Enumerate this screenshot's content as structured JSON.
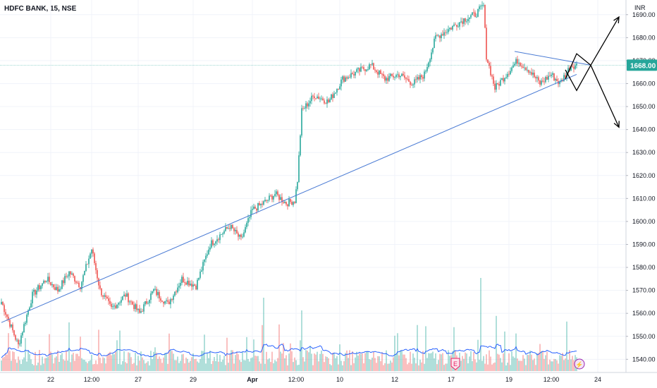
{
  "chart_data": {
    "type": "candlestick",
    "title": "HDFC BANK, 15, NSE",
    "currency": "INR",
    "last_price": "1668.00",
    "last_price_value": 1668,
    "y_range": [
      1535,
      1700
    ],
    "y_ticks": [
      "1690.00",
      "1680.00",
      "1670.00",
      "1660.00",
      "1650.00",
      "1640.00",
      "1630.00",
      "1620.00",
      "1610.00",
      "1600.00",
      "1590.00",
      "1580.00",
      "1570.00",
      "1560.00",
      "1550.00",
      "1540.00"
    ],
    "y_tick_values": [
      1690,
      1680,
      1670,
      1660,
      1650,
      1640,
      1630,
      1620,
      1610,
      1600,
      1590,
      1580,
      1570,
      1560,
      1550,
      1540
    ],
    "x_ticks": [
      "22",
      "12:00",
      "27",
      "29",
      "Apr",
      "12:00",
      "10",
      "12",
      "17",
      "19",
      "12:00",
      "24"
    ],
    "colors": {
      "up": "#26a69a",
      "down": "#ef5350",
      "trendline": "#4a7bd4",
      "price_line": "#26a69a",
      "volume_ma": "#2962ff",
      "arrows": "#000000"
    },
    "price_anchors": [
      {
        "t": 0,
        "p": 1565
      },
      {
        "t": 12,
        "p": 1546
      },
      {
        "t": 22,
        "p": 1568
      },
      {
        "t": 32,
        "p": 1575
      },
      {
        "t": 40,
        "p": 1570
      },
      {
        "t": 48,
        "p": 1578
      },
      {
        "t": 56,
        "p": 1572
      },
      {
        "t": 64,
        "p": 1588
      },
      {
        "t": 70,
        "p": 1570
      },
      {
        "t": 78,
        "p": 1562
      },
      {
        "t": 88,
        "p": 1568
      },
      {
        "t": 98,
        "p": 1560
      },
      {
        "t": 108,
        "p": 1570
      },
      {
        "t": 118,
        "p": 1564
      },
      {
        "t": 128,
        "p": 1575
      },
      {
        "t": 138,
        "p": 1572
      },
      {
        "t": 148,
        "p": 1590
      },
      {
        "t": 155,
        "p": 1594
      },
      {
        "t": 162,
        "p": 1598
      },
      {
        "t": 170,
        "p": 1592
      },
      {
        "t": 178,
        "p": 1605
      },
      {
        "t": 186,
        "p": 1608
      },
      {
        "t": 194,
        "p": 1612
      },
      {
        "t": 202,
        "p": 1608
      },
      {
        "t": 208,
        "p": 1609
      },
      {
        "t": 210,
        "p": 1618
      },
      {
        "t": 213,
        "p": 1648
      },
      {
        "t": 222,
        "p": 1655
      },
      {
        "t": 232,
        "p": 1652
      },
      {
        "t": 242,
        "p": 1662
      },
      {
        "t": 252,
        "p": 1665
      },
      {
        "t": 262,
        "p": 1668
      },
      {
        "t": 272,
        "p": 1662
      },
      {
        "t": 282,
        "p": 1664
      },
      {
        "t": 292,
        "p": 1660
      },
      {
        "t": 300,
        "p": 1664
      },
      {
        "t": 308,
        "p": 1680
      },
      {
        "t": 318,
        "p": 1684
      },
      {
        "t": 328,
        "p": 1688
      },
      {
        "t": 336,
        "p": 1690
      },
      {
        "t": 342,
        "p": 1694
      },
      {
        "t": 344,
        "p": 1672
      },
      {
        "t": 350,
        "p": 1658
      },
      {
        "t": 358,
        "p": 1664
      },
      {
        "t": 366,
        "p": 1670
      },
      {
        "t": 374,
        "p": 1666
      },
      {
        "t": 382,
        "p": 1660
      },
      {
        "t": 390,
        "p": 1664
      },
      {
        "t": 396,
        "p": 1660
      },
      {
        "t": 404,
        "p": 1668
      },
      {
        "t": 408,
        "p": 1668
      }
    ],
    "volume_level": 0.5,
    "annotations": {
      "ascending_trendline": [
        {
          "t": 0,
          "p": 1556
        },
        {
          "t": 408,
          "p": 1664
        }
      ],
      "descending_trendline": [
        {
          "t": 364,
          "p": 1674
        },
        {
          "t": 418,
          "p": 1668
        }
      ],
      "arrow_up": [
        {
          "t": 418,
          "p": 1668
        },
        {
          "t": 438,
          "p": 1689
        }
      ],
      "arrow_down": [
        {
          "t": 418,
          "p": 1668
        },
        {
          "t": 438,
          "p": 1641
        }
      ],
      "zigzag_up": [
        {
          "t": 400,
          "p": 1662
        },
        {
          "t": 408,
          "p": 1673
        },
        {
          "t": 418,
          "p": 1668
        }
      ],
      "zigzag_down": [
        {
          "t": 400,
          "p": 1666
        },
        {
          "t": 408,
          "p": 1657
        },
        {
          "t": 418,
          "p": 1668
        }
      ]
    },
    "markers": [
      {
        "type": "earnings",
        "label": "E",
        "t": 322
      },
      {
        "type": "dividend",
        "label": "⚡",
        "t": 410
      }
    ],
    "grid": true
  }
}
